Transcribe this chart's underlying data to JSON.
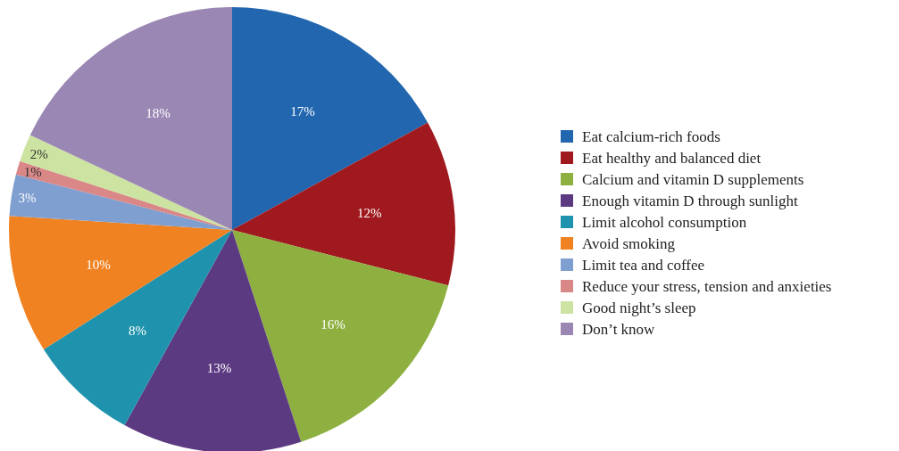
{
  "chart_data": {
    "type": "pie",
    "categories": [
      "Eat calcium-rich foods",
      "Eat healthy and balanced diet",
      "Calcium and vitamin D supplements",
      "Enough vitamin D through sunlight",
      "Limit alcohol consumption",
      "Avoid smoking",
      "Limit tea and coffee",
      "Reduce your stress, tension and anxieties",
      "Good night’s sleep",
      "Don’t know"
    ],
    "values": [
      17,
      12,
      16,
      13,
      8,
      10,
      3,
      1,
      2,
      18
    ],
    "colors": [
      "#2166ae",
      "#a0191e",
      "#8db040",
      "#5c3a82",
      "#1f93ad",
      "#f08222",
      "#7f9fd0",
      "#d98787",
      "#cde3a1",
      "#9b87b4"
    ],
    "value_labels": [
      "17%",
      "12%",
      "16%",
      "13%",
      "8%",
      "10%",
      "3%",
      "1%",
      "2%",
      "18%"
    ],
    "legend": "right"
  }
}
